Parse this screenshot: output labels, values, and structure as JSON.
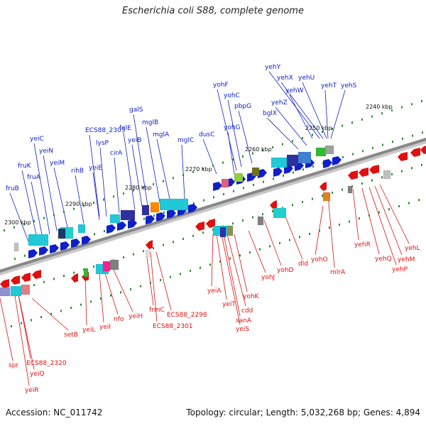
{
  "title": "Escherichia coli S88, complete genome",
  "accession": "Accession: NC_011742",
  "stats": "Topology: circular; Length: 5,032,268 bp; Genes: 4,894",
  "colors": {
    "forward": "#1020c8",
    "reverse": "#e01010",
    "backbone": "#888888",
    "tick": "#2a8a2a"
  },
  "kbp_ticks": [
    "2240 kbp",
    "2250 kbp",
    "2260 kbp",
    "2270 kbp",
    "2280 kbp",
    "2290 kbp",
    "2300 kbp"
  ],
  "forward_genes": [
    "yehY",
    "yehX",
    "yehU",
    "yehT",
    "yehS",
    "yehW",
    "yehZ",
    "bglX",
    "pbpG",
    "yohC",
    "yohF",
    "yohG",
    "dusC",
    "mglC",
    "mglA",
    "mglB",
    "galS",
    "yeiB",
    "folE",
    "cirA",
    "lysP",
    "ECS88_2305",
    "yeiE",
    "rihB",
    "yeiC",
    "yeiN",
    "yeiM",
    "fruK",
    "fruA",
    "fruB"
  ],
  "reverse_genes": [
    "yehL",
    "yehM",
    "yehP",
    "yehQ",
    "yehR",
    "mlrA",
    "yohO",
    "dld",
    "yohD",
    "yohJ",
    "yohK",
    "cdd",
    "sanA",
    "yeiS",
    "yeiT",
    "yeiA",
    "ECS88_2298",
    "ECS88_2301",
    "frmC",
    "yeiH",
    "nfo",
    "yeiI",
    "yeiL",
    "setB",
    "ECS88_2320",
    "yeiQ",
    "yeiR",
    "spr"
  ]
}
